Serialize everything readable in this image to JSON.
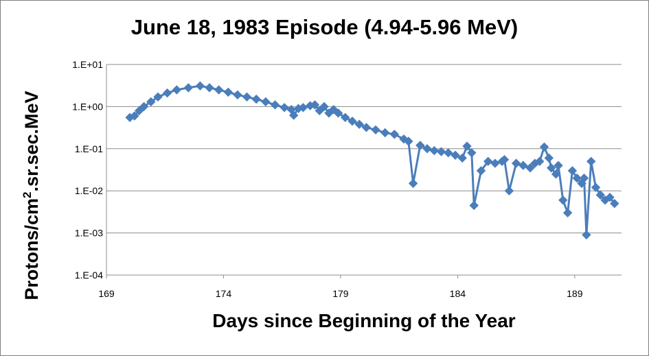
{
  "chart_data": {
    "type": "line",
    "title": "June 18, 1983 Episode (4.94-5.96 MeV)",
    "xlabel": "Days since Beginning of the Year",
    "ylabel": "Protons/cm².sr.sec.MeV",
    "ylabel_parts": [
      "Protons/cm",
      "2",
      ".sr.sec.MeV"
    ],
    "y_scale": "log",
    "xlim": [
      169,
      191
    ],
    "ylim": [
      0.0001,
      10
    ],
    "x_ticks": [
      169,
      174,
      179,
      184,
      189
    ],
    "x_tick_labels": [
      "169",
      "174",
      "179",
      "184",
      "189"
    ],
    "y_ticks": [
      0.0001,
      0.001,
      0.01,
      0.1,
      1,
      10
    ],
    "y_tick_labels": [
      "1.E-04",
      "1.E-03",
      "1.E-02",
      "1.E-01",
      "1.E+00",
      "1.E+01"
    ],
    "grid": "horizontal",
    "legend": "none",
    "series": [
      {
        "color": "#4a7ebb",
        "marker": "diamond",
        "x": [
          170.0,
          170.2,
          170.4,
          170.6,
          170.9,
          171.2,
          171.6,
          172.0,
          172.5,
          173.0,
          173.4,
          173.8,
          174.2,
          174.6,
          175.0,
          175.4,
          175.8,
          176.2,
          176.6,
          176.9,
          177.0,
          177.2,
          177.4,
          177.7,
          177.9,
          178.1,
          178.3,
          178.5,
          178.7,
          178.9,
          179.2,
          179.5,
          179.8,
          180.1,
          180.5,
          180.9,
          181.3,
          181.7,
          181.9,
          182.1,
          182.4,
          182.7,
          183.0,
          183.3,
          183.6,
          183.9,
          184.2,
          184.4,
          184.6,
          184.7,
          185.0,
          185.3,
          185.6,
          185.9,
          186.0,
          186.2,
          186.5,
          186.8,
          187.1,
          187.3,
          187.5,
          187.7,
          187.9,
          188.0,
          188.2,
          188.3,
          188.5,
          188.7,
          188.9,
          189.1,
          189.3,
          189.4,
          189.5,
          189.7,
          189.9,
          190.1,
          190.3,
          190.5,
          190.7
        ],
        "y": [
          0.55,
          0.6,
          0.8,
          1.0,
          1.3,
          1.7,
          2.1,
          2.5,
          2.8,
          3.1,
          2.8,
          2.5,
          2.2,
          1.9,
          1.7,
          1.5,
          1.3,
          1.1,
          0.95,
          0.85,
          0.62,
          0.9,
          0.95,
          1.05,
          1.1,
          0.8,
          1.0,
          0.7,
          0.85,
          0.7,
          0.55,
          0.45,
          0.38,
          0.32,
          0.28,
          0.24,
          0.22,
          0.17,
          0.15,
          0.015,
          0.12,
          0.1,
          0.09,
          0.085,
          0.08,
          0.07,
          0.06,
          0.115,
          0.08,
          0.0045,
          0.03,
          0.05,
          0.045,
          0.05,
          0.055,
          0.01,
          0.045,
          0.04,
          0.035,
          0.045,
          0.05,
          0.11,
          0.06,
          0.035,
          0.025,
          0.04,
          0.006,
          0.003,
          0.03,
          0.02,
          0.015,
          0.02,
          0.0009,
          0.05,
          0.012,
          0.008,
          0.006,
          0.007,
          0.005
        ]
      }
    ]
  }
}
